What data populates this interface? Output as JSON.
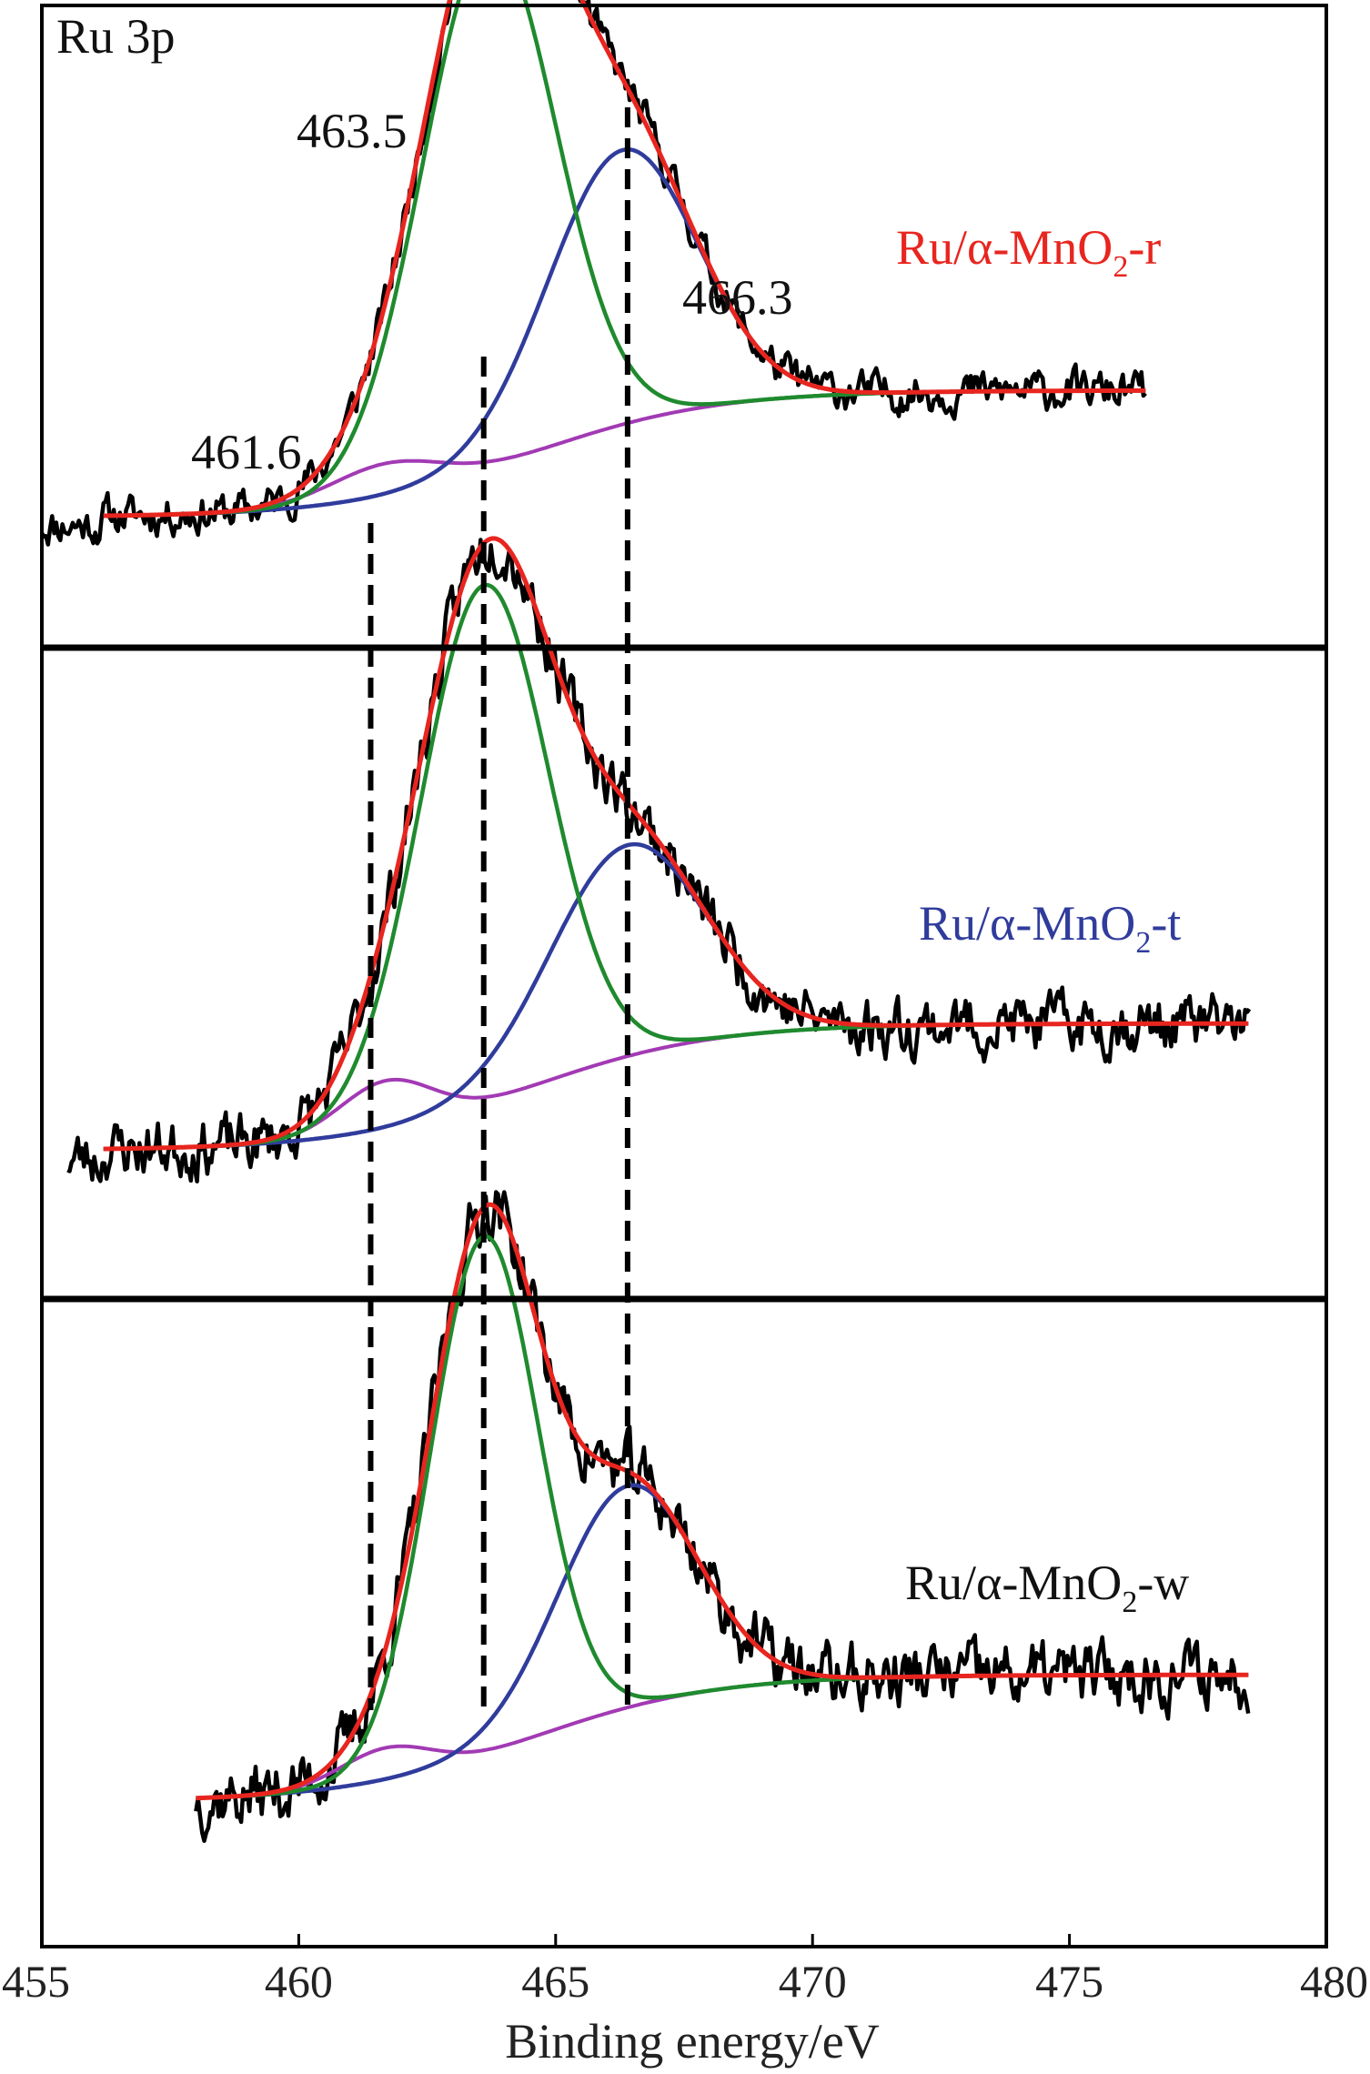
{
  "chart_data": {
    "type": "line",
    "title": "Ru 3p",
    "xlabel": "Binding energy/eV",
    "ylabel": "",
    "xlim": [
      455,
      480
    ],
    "xticks": [
      455,
      460,
      465,
      470,
      475,
      480
    ],
    "xtick_labels": [
      "455",
      "460",
      "465",
      "470",
      "475",
      "480"
    ],
    "grid": false,
    "colors": {
      "raw": "#000000",
      "envelope": "#e8251f",
      "peak_463": "#1f8a2e",
      "peak_466": "#303c9c",
      "peak_461": "#a23ab4",
      "ref_line": "#000000"
    },
    "reference_lines_ev": [
      461.4,
      463.6,
      466.4
    ],
    "annotations": [
      {
        "text": "463.5",
        "x_ev": 463.5
      },
      {
        "text": "466.3",
        "x_ev": 466.3
      },
      {
        "text": "461.6",
        "x_ev": 461.6
      }
    ],
    "panels": [
      {
        "label": "Ru/α-MnO2-r",
        "label_main": "Ru/α-MnO",
        "label_sub": "2",
        "label_suffix": "-r",
        "label_color": "#e8251f",
        "x_range": [
          456.2,
          476.5
        ],
        "noise_start_ev": 455,
        "noise_amplitude": 0.03,
        "seed": 11,
        "baseline_low": 0.12,
        "baseline_high": 0.36,
        "baseline_center": 464.5,
        "baseline_width": 1.8,
        "peaks": [
          {
            "center": 463.7,
            "height": 1.0,
            "sigma": 1.3
          },
          {
            "center": 466.3,
            "height": 0.52,
            "sigma": 1.45
          },
          {
            "center": 461.7,
            "height": 0.06,
            "sigma": 1.1
          }
        ]
      },
      {
        "label": "Ru/α-MnO2-t",
        "label_main": "Ru/α-MnO",
        "label_sub": "2",
        "label_suffix": "-t",
        "label_color": "#303c9c",
        "x_range": [
          456.2,
          478.5
        ],
        "noise_start_ev": 455.5,
        "noise_amplitude": 0.045,
        "seed": 23,
        "baseline_low": 0.12,
        "baseline_high": 0.36,
        "baseline_center": 464.5,
        "baseline_width": 1.8,
        "peaks": [
          {
            "center": 463.6,
            "height": 0.98,
            "sigma": 1.25
          },
          {
            "center": 466.4,
            "height": 0.4,
            "sigma": 1.5
          },
          {
            "center": 461.7,
            "height": 0.09,
            "sigma": 0.9
          }
        ]
      },
      {
        "label": "Ru/α-MnO2-w",
        "label_main": "Ru/α-MnO",
        "label_sub": "2",
        "label_suffix": "-w",
        "label_color": "#111111",
        "x_range": [
          458.0,
          478.5
        ],
        "noise_start_ev": 458.0,
        "noise_amplitude": 0.05,
        "seed": 37,
        "baseline_low": 0.12,
        "baseline_high": 0.36,
        "baseline_center": 464.5,
        "baseline_width": 1.8,
        "peaks": [
          {
            "center": 463.6,
            "height": 0.98,
            "sigma": 1.05
          },
          {
            "center": 466.4,
            "height": 0.42,
            "sigma": 1.35
          },
          {
            "center": 461.7,
            "height": 0.06,
            "sigma": 0.9
          }
        ]
      }
    ]
  }
}
